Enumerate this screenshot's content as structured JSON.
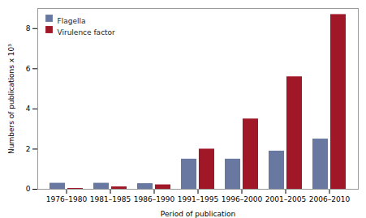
{
  "chart_data": {
    "type": "bar",
    "categories": [
      "1976–1980",
      "1981–1985",
      "1986–1990",
      "1991–1995",
      "1996–2000",
      "2001–2005",
      "2006–2010"
    ],
    "series": [
      {
        "name": "Flagella",
        "color": "#6878a0",
        "values": [
          0.3,
          0.3,
          0.28,
          1.5,
          1.5,
          1.9,
          2.5
        ]
      },
      {
        "name": "Virulence factor",
        "color": "#a01828",
        "values": [
          0.04,
          0.12,
          0.22,
          2.0,
          3.5,
          5.6,
          8.7
        ]
      }
    ],
    "xlabel": "Period of publication",
    "ylabel": "Numbers of publications x 10³",
    "ylim": [
      0,
      9
    ],
    "yticks": [
      0,
      2,
      4,
      6,
      8
    ],
    "grid": false,
    "legend": "upper left"
  }
}
